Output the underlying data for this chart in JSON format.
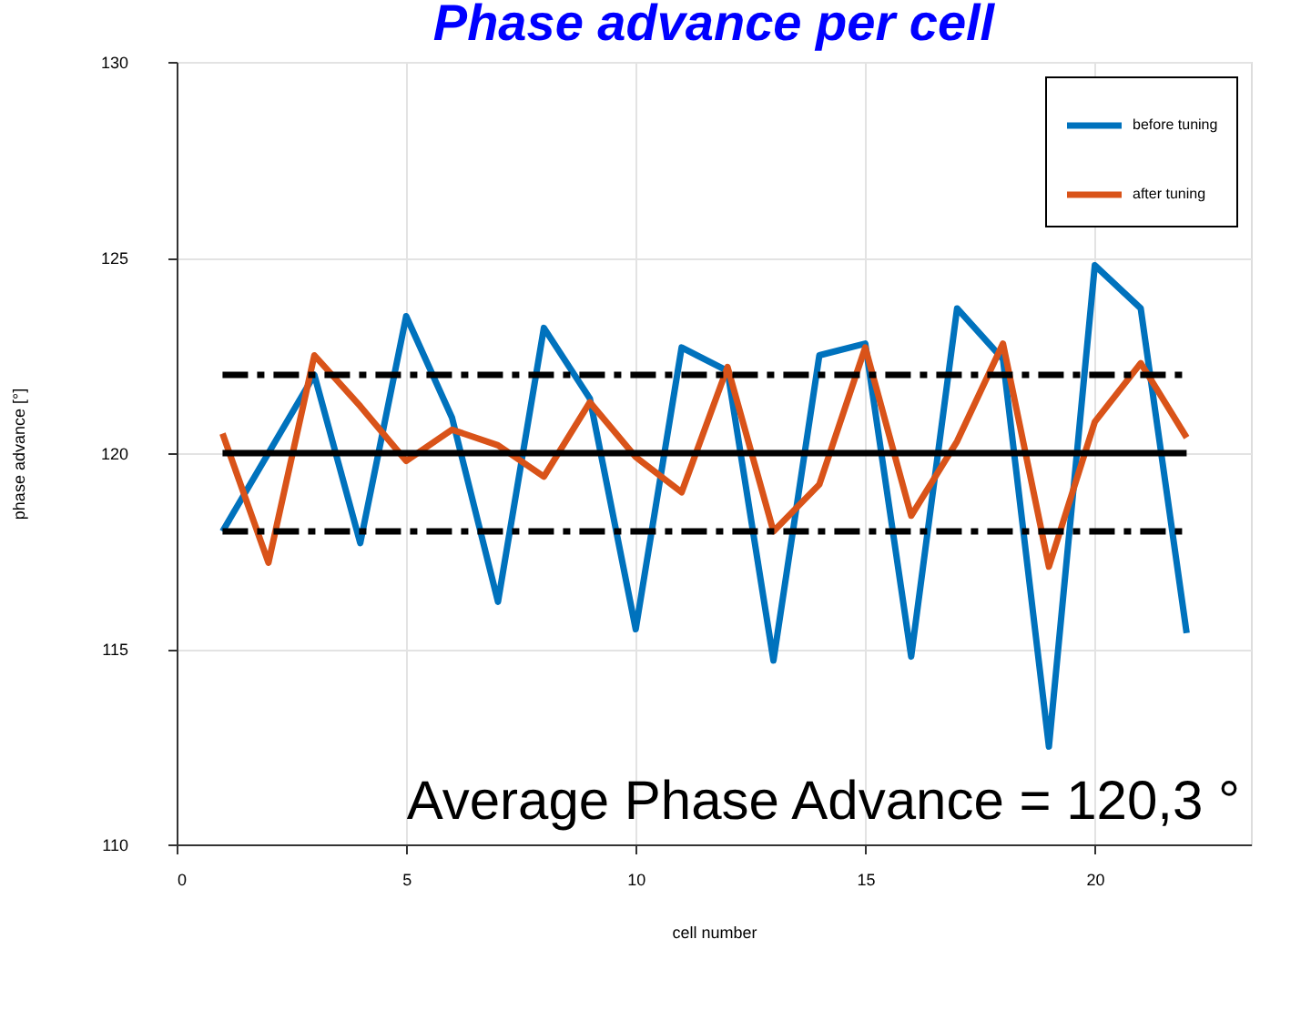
{
  "chart_data": {
    "type": "line",
    "title": "Phase advance per cell",
    "xlabel": "cell number",
    "ylabel": "phase advance [°]",
    "x": [
      1,
      2,
      3,
      4,
      5,
      6,
      7,
      8,
      9,
      10,
      11,
      12,
      13,
      14,
      15,
      16,
      17,
      18,
      19,
      20,
      21,
      22
    ],
    "series": [
      {
        "name": "before tuning",
        "color": "#0072bd",
        "values": [
          118,
          120,
          122,
          117.7,
          123.5,
          120.9,
          116.2,
          123.2,
          121.4,
          115.5,
          122.7,
          122.1,
          114.7,
          122.5,
          122.8,
          114.8,
          123.7,
          122.4,
          112.5,
          124.8,
          123.7,
          115.4
        ]
      },
      {
        "name": "after tuning",
        "color": "#d95319",
        "values": [
          120.5,
          117.2,
          122.5,
          121.2,
          119.8,
          120.6,
          120.2,
          119.4,
          121.3,
          119.9,
          119,
          122.2,
          118,
          119.2,
          122.7,
          118.4,
          120.3,
          122.8,
          117.1,
          120.8,
          122.3,
          120.4
        ]
      }
    ],
    "xlim": [
      0,
      23.4
    ],
    "xticks": [
      0,
      5,
      10,
      15,
      20
    ],
    "ylim": [
      110,
      130
    ],
    "yticks": [
      110,
      115,
      120,
      125,
      130
    ],
    "ref_lines": [
      {
        "axis": "y",
        "value": 120,
        "color": "#000000",
        "line_style": "solid"
      },
      {
        "axis": "y",
        "value": 122,
        "color": "#000000",
        "line_style": "dashdot"
      },
      {
        "axis": "y",
        "value": 118,
        "color": "#000000",
        "line_style": "dashdot"
      }
    ],
    "annotations": [
      "Average Phase Advance = 120,3 °"
    ],
    "grid": true,
    "legend": "top right",
    "marker": "none",
    "line_style": "solid"
  }
}
